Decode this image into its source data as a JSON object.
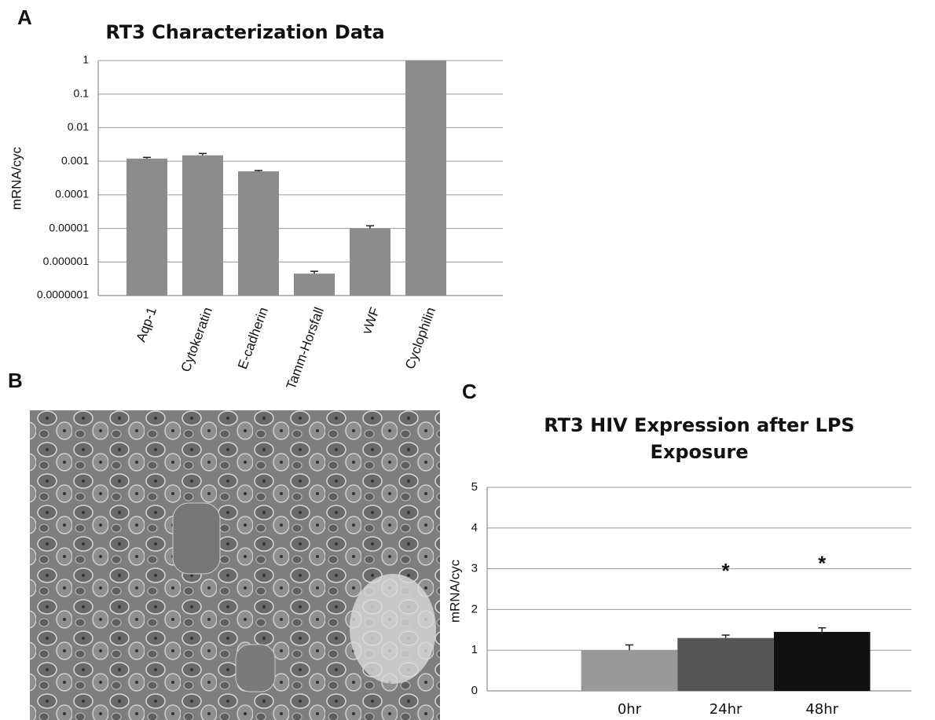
{
  "chart_data": [
    {
      "type": "bar",
      "panel": "A",
      "title": "RT3 Characterization Data",
      "y_label": "mRNA/cyc",
      "log_scale": true,
      "grid": true,
      "color": "#8c8c8c",
      "categories": [
        "Aqp-1",
        "Cytokeratin",
        "E-cadherin",
        "Tamm-Horsfall",
        "vWF",
        "Cyclophilin"
      ],
      "values": [
        0.0012,
        0.0015,
        0.0005,
        4.5e-07,
        1e-05,
        1
      ],
      "errors": [
        0.0001,
        0.0002,
        3e-05,
        8e-08,
        2e-06,
        0
      ],
      "ylim": [
        1e-07,
        1
      ],
      "yticks": [
        1,
        0.1,
        0.01,
        0.001,
        0.0001,
        1e-05,
        1e-06,
        {
          "value": 1e-07,
          "label": "0.0000001"
        }
      ]
    },
    {
      "type": "bar",
      "panel": "C",
      "title": "RT3 HIV Expression after LPS Exposure",
      "y_label": "mRNA/cyc",
      "grid": true,
      "categories": [
        "0hr",
        "24hr",
        "48hr"
      ],
      "values": [
        1.0,
        1.3,
        1.45
      ],
      "errors": [
        0.13,
        0.07,
        0.1
      ],
      "colors": [
        "#999999",
        "#555555",
        "#111111"
      ],
      "annotations": [
        {
          "x": "24hr",
          "text": "*"
        },
        {
          "x": "48hr",
          "text": "*"
        }
      ],
      "ylim": [
        0,
        5
      ],
      "yticks": [
        0,
        1,
        2,
        3,
        4,
        5
      ]
    }
  ],
  "image_panel": {
    "panel": "B"
  }
}
